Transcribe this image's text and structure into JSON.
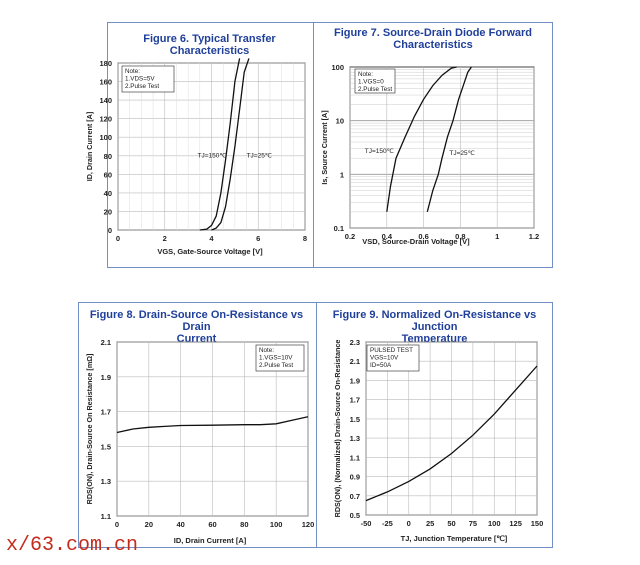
{
  "panels": [
    {
      "title_line1": "Figure 6. Typical Transfer Characteristics",
      "title_line2": ""
    },
    {
      "title_line1": "Figure 7. Source-Drain Diode Forward",
      "title_line2": "Characteristics"
    },
    {
      "title_line1": "Figure 8. Drain-Source On-Resistance vs Drain",
      "title_line2": "Current"
    },
    {
      "title_line1": "Figure 9. Normalized On-Resistance vs Junction",
      "title_line2": "Temperature"
    }
  ],
  "watermark": "x/63.com.cn",
  "chart_data": [
    {
      "type": "line",
      "title": "Figure 6. Typical Transfer Characteristics",
      "xlabel": "VGS, Gate-Source Voltage [V]",
      "ylabel": "ID, Drain Current [A]",
      "xlim": [
        0,
        8
      ],
      "ylim": [
        0,
        180
      ],
      "xticks": [
        "0",
        "2",
        "4",
        "6",
        "8"
      ],
      "yticks": [
        "0",
        "20",
        "40",
        "60",
        "80",
        "100",
        "120",
        "140",
        "160",
        "180"
      ],
      "grid": true,
      "note": [
        "Note:",
        "1.VDS=5V",
        "2.Pulse Test"
      ],
      "series": [
        {
          "name": "TJ=150℃",
          "x": [
            3.5,
            3.8,
            4.0,
            4.2,
            4.4,
            4.6,
            4.8,
            5.0,
            5.2
          ],
          "y": [
            0,
            1,
            5,
            15,
            40,
            75,
            115,
            160,
            185
          ]
        },
        {
          "name": "TJ=25℃",
          "x": [
            4.0,
            4.2,
            4.4,
            4.6,
            4.8,
            5.0,
            5.2,
            5.4,
            5.6
          ],
          "y": [
            0,
            2,
            8,
            25,
            55,
            90,
            130,
            170,
            185
          ]
        }
      ],
      "annotations": [
        {
          "text": "TJ=150℃",
          "x": 3.4,
          "y": 78
        },
        {
          "text": "TJ=25℃",
          "x": 5.5,
          "y": 78
        }
      ]
    },
    {
      "type": "line",
      "title": "Figure 7. Source-Drain Diode Forward Characteristics",
      "xlabel": "VSD, Source-Drain Voltage [V]",
      "ylabel": "Is, Source Current [A]",
      "xlim": [
        0.2,
        1.2
      ],
      "ylim": [
        0.1,
        100
      ],
      "yscale": "log",
      "xticks": [
        "0.2",
        "0.4",
        "0.6",
        "0.8",
        "1",
        "1.2"
      ],
      "yticks": [
        "0.1",
        "1",
        "10",
        "100"
      ],
      "grid": true,
      "note": [
        "Note:",
        "1.VGS=0",
        "2.Pulse Test"
      ],
      "series": [
        {
          "name": "TJ=150℃",
          "x": [
            0.4,
            0.42,
            0.45,
            0.5,
            0.55,
            0.6,
            0.65,
            0.7,
            0.75,
            0.78
          ],
          "y": [
            0.2,
            0.6,
            2,
            5,
            12,
            25,
            45,
            70,
            95,
            100
          ]
        },
        {
          "name": "TJ=25℃",
          "x": [
            0.62,
            0.65,
            0.68,
            0.7,
            0.73,
            0.76,
            0.79,
            0.82,
            0.84,
            0.86
          ],
          "y": [
            0.2,
            0.5,
            1,
            2,
            5,
            10,
            25,
            50,
            80,
            100
          ]
        }
      ],
      "annotations": [
        {
          "text": "TJ=150℃",
          "x": 0.28,
          "y": 2.5
        },
        {
          "text": "TJ=25℃",
          "x": 0.74,
          "y": 2.3
        }
      ]
    },
    {
      "type": "line",
      "title": "Figure 8. Drain-Source On-Resistance vs Drain Current",
      "xlabel": "ID, Drain Current [A]",
      "ylabel": "RDS(ON), Drain-Source On Resistance [mΩ]",
      "xlim": [
        0,
        120
      ],
      "ylim": [
        1.1,
        2.1
      ],
      "xticks": [
        "0",
        "20",
        "40",
        "60",
        "80",
        "100",
        "120"
      ],
      "yticks": [
        "1.1",
        "1.3",
        "1.5",
        "1.7",
        "1.9",
        "2.1"
      ],
      "grid": true,
      "note": [
        "Note:",
        "1.VGS=10V",
        "2.Pulse Test"
      ],
      "series": [
        {
          "name": "",
          "x": [
            0,
            10,
            20,
            30,
            40,
            60,
            80,
            90,
            100,
            110,
            120
          ],
          "y": [
            1.58,
            1.6,
            1.61,
            1.615,
            1.62,
            1.622,
            1.625,
            1.625,
            1.63,
            1.65,
            1.67
          ]
        }
      ]
    },
    {
      "type": "line",
      "title": "Figure 9. Normalized On-Resistance vs Junction Temperature",
      "xlabel": "TJ, Junction Temperature [℃]",
      "ylabel": "RDS(ON), (Normalized) Drain-Source On-Resistance",
      "xlim": [
        -50,
        150
      ],
      "ylim": [
        0.5,
        2.3
      ],
      "xticks": [
        "-50",
        "-25",
        "0",
        "25",
        "50",
        "75",
        "100",
        "125",
        "150"
      ],
      "yticks": [
        "0.5",
        "0.7",
        "0.9",
        "1.1",
        "1.3",
        "1.5",
        "1.7",
        "1.9",
        "2.1",
        "2.3"
      ],
      "grid": true,
      "note": [
        "PULSED TEST",
        "VGS=10V",
        "ID=50A"
      ],
      "series": [
        {
          "name": "",
          "x": [
            -50,
            -25,
            0,
            25,
            50,
            75,
            100,
            125,
            150
          ],
          "y": [
            0.65,
            0.74,
            0.85,
            0.98,
            1.14,
            1.33,
            1.55,
            1.8,
            2.05
          ]
        }
      ]
    }
  ]
}
